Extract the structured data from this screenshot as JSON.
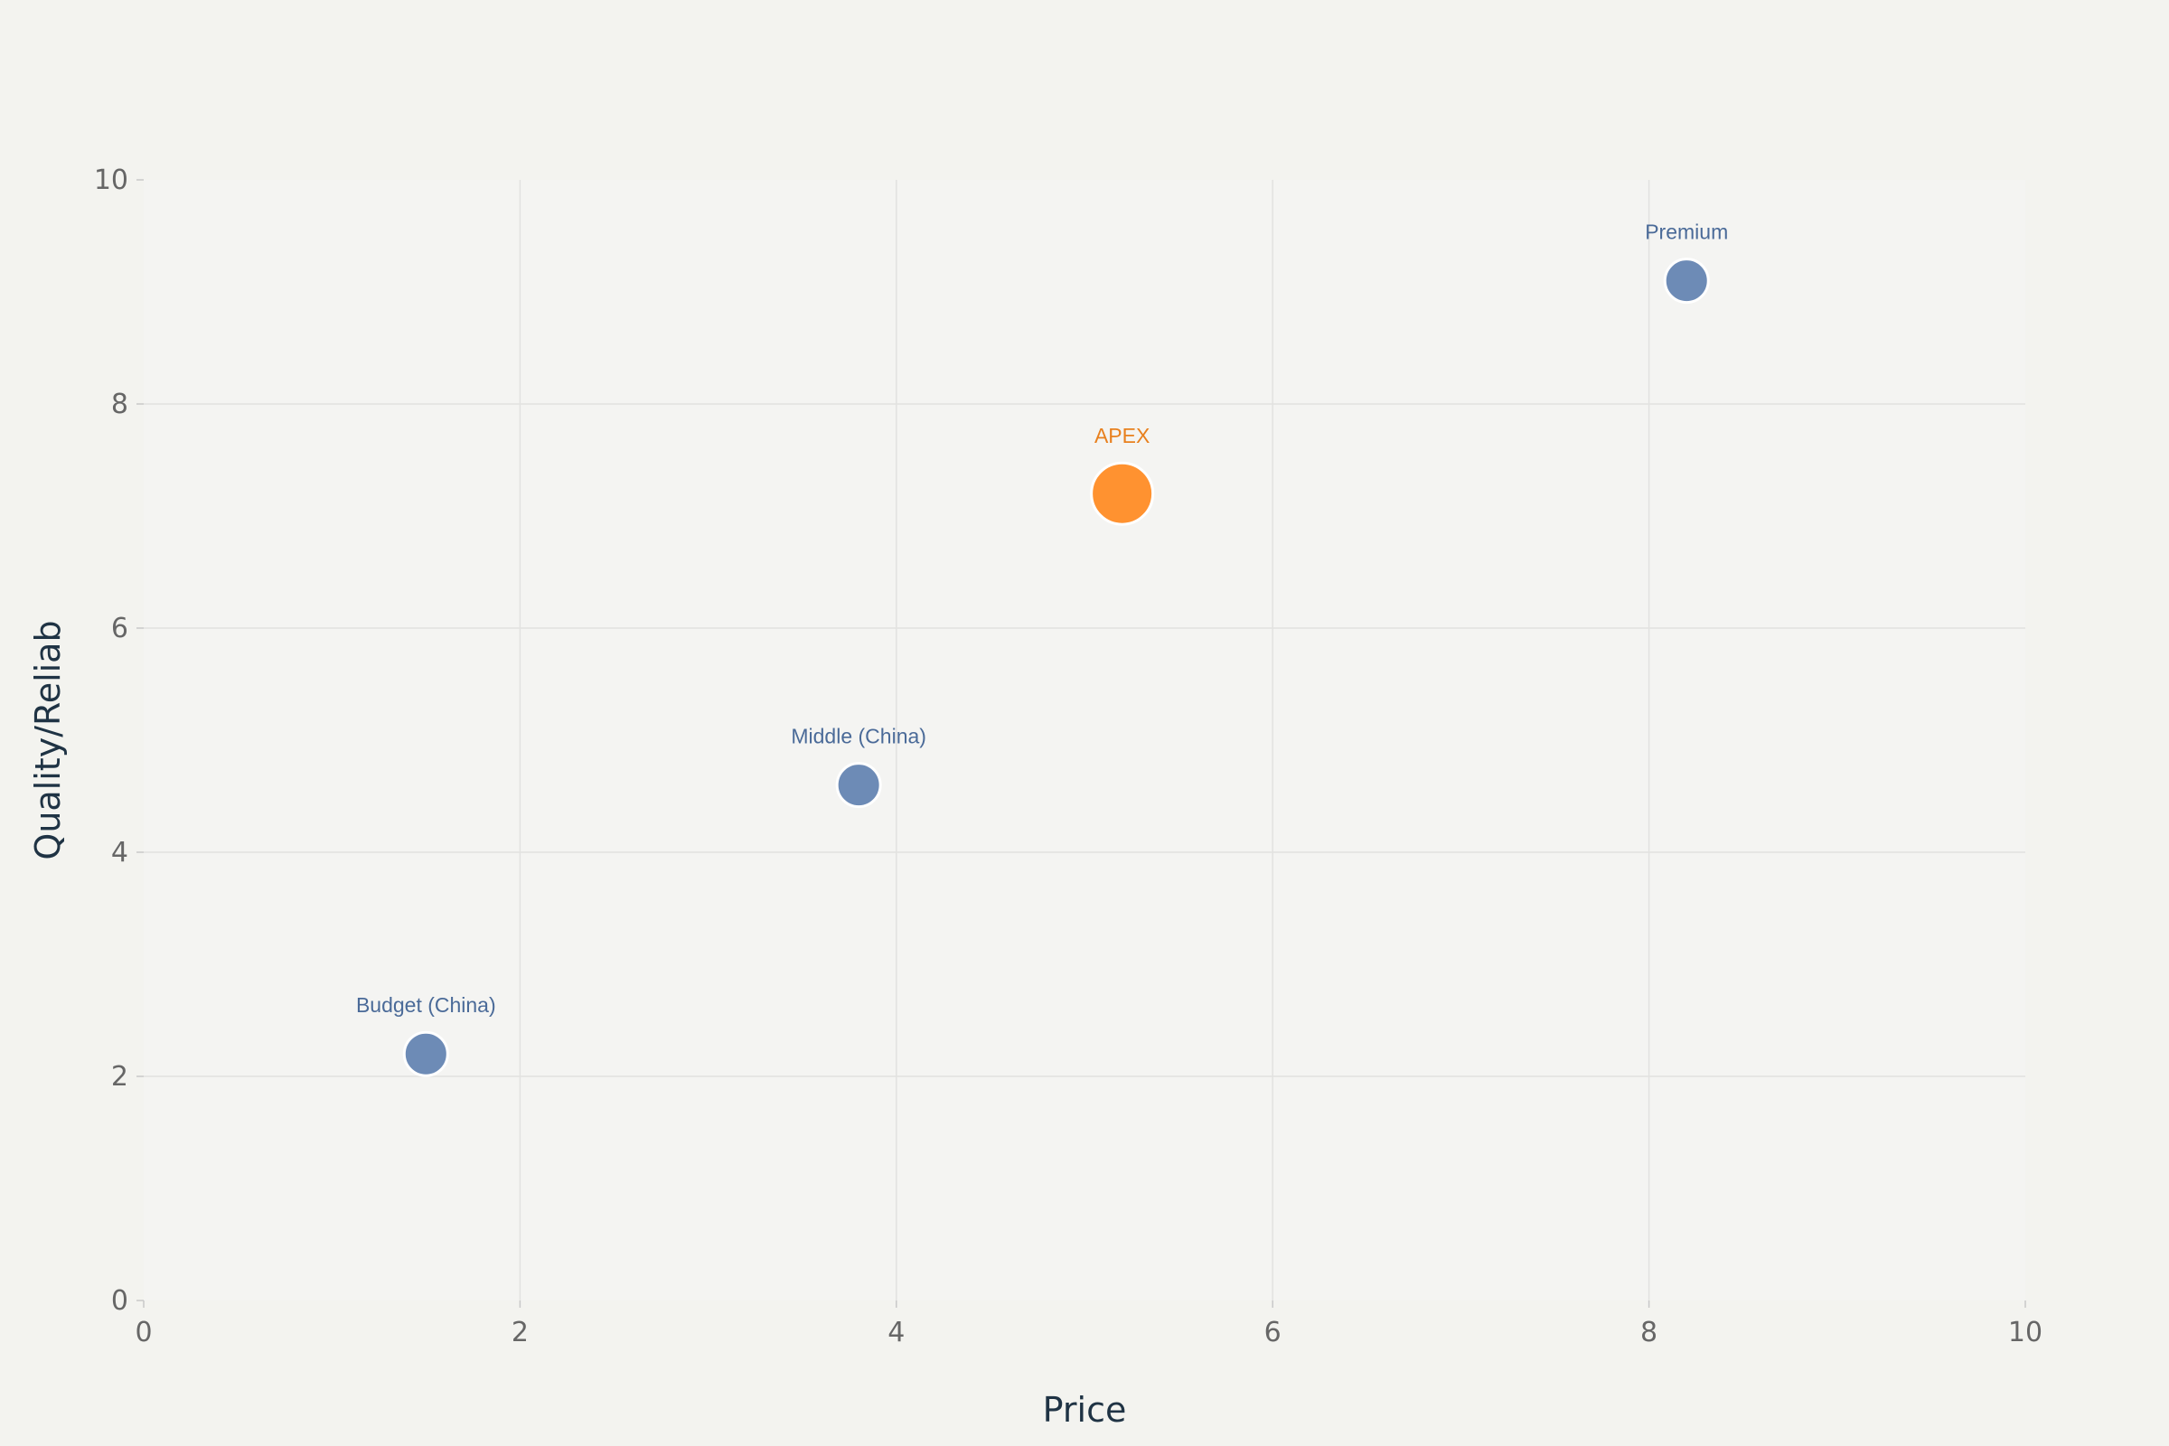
{
  "chart_data": {
    "type": "scatter",
    "title": "",
    "xlabel": "Price",
    "ylabel": "Quality/Reliab",
    "xlim": [
      0,
      10
    ],
    "ylim": [
      0,
      10
    ],
    "xticks": [
      0,
      2,
      4,
      6,
      8,
      10
    ],
    "yticks": [
      0,
      2,
      4,
      6,
      8,
      10
    ],
    "grid": true,
    "points": [
      {
        "label": "Budget (China)",
        "x": 1.5,
        "y": 2.2,
        "highlight": false
      },
      {
        "label": "Middle (China)",
        "x": 3.8,
        "y": 4.6,
        "highlight": false
      },
      {
        "label": "APEX",
        "x": 5.2,
        "y": 7.2,
        "highlight": true
      },
      {
        "label": "Premium",
        "x": 8.2,
        "y": 9.1,
        "highlight": false
      }
    ]
  },
  "colors": {
    "background": "#f3f3ef",
    "plot_background": "#f4f4f2",
    "grid": "#e2e2e0",
    "default_marker": "#6d8bb6",
    "default_label": "#4a6a98",
    "highlight_marker": "#ff9230",
    "highlight_label": "#e8801e",
    "marker_stroke": "#ffffff"
  }
}
